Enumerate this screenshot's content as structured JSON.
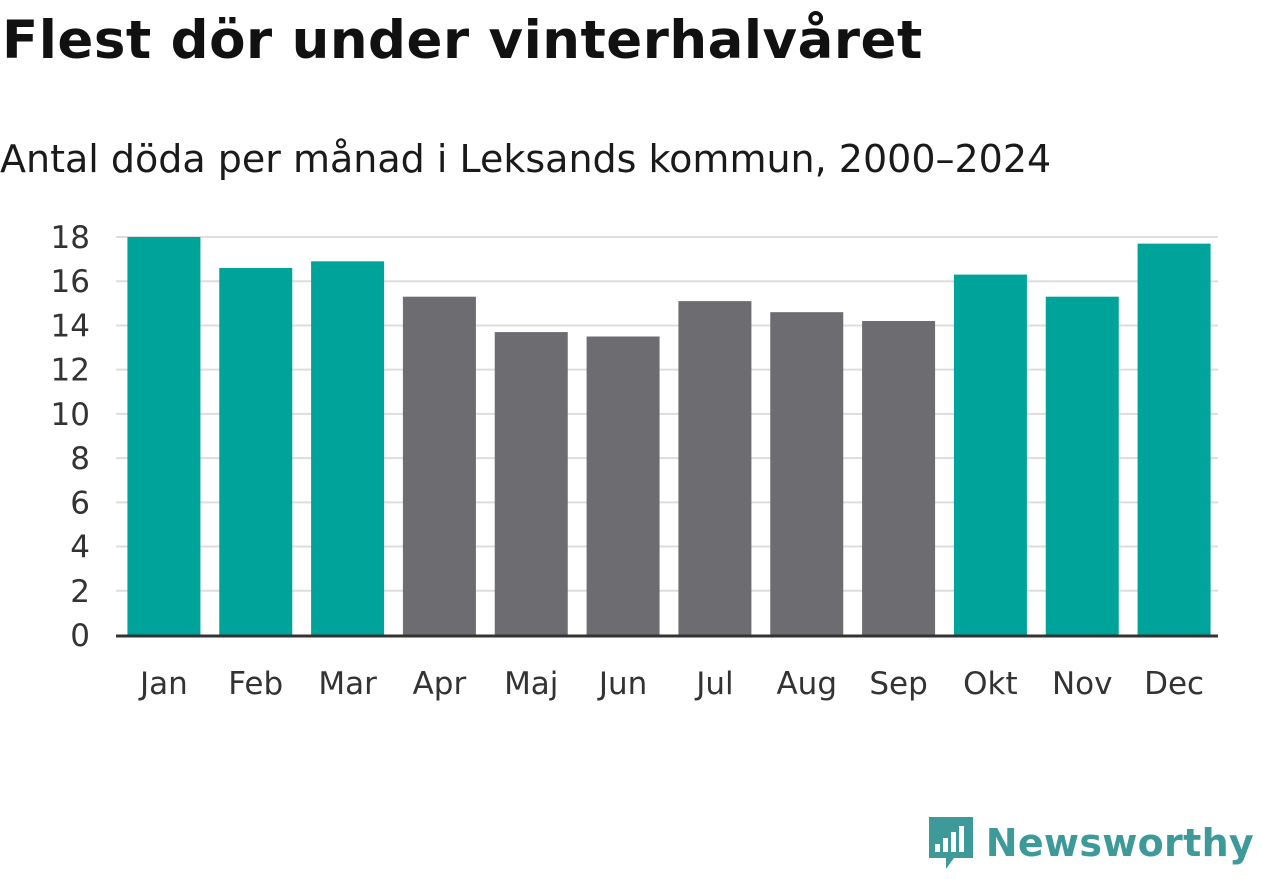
{
  "title": "Flest dör under vinterhalvåret",
  "subtitle": "Antal döda per månad i Leksands kommun, 2000–2024",
  "brand": {
    "name": "Newsworthy",
    "icon": "newsworthy-logo-icon",
    "color": "#3d9a99"
  },
  "colors": {
    "highlight": "#00a39a",
    "muted": "#6d6c71",
    "grid": "#dddddd",
    "axis": "#333333"
  },
  "chart_data": {
    "type": "bar",
    "title": "Flest dör under vinterhalvåret",
    "subtitle": "Antal döda per månad i Leksands kommun, 2000–2024",
    "xlabel": "",
    "ylabel": "",
    "categories": [
      "Jan",
      "Feb",
      "Mar",
      "Apr",
      "Maj",
      "Jun",
      "Jul",
      "Aug",
      "Sep",
      "Okt",
      "Nov",
      "Dec"
    ],
    "values": [
      18.0,
      16.6,
      16.9,
      15.3,
      13.7,
      13.5,
      15.1,
      14.6,
      14.2,
      16.3,
      15.3,
      17.7
    ],
    "highlighted": [
      true,
      true,
      true,
      false,
      false,
      false,
      false,
      false,
      false,
      true,
      true,
      true
    ],
    "ylim": [
      0,
      18
    ],
    "yticks": [
      0,
      2,
      4,
      6,
      8,
      10,
      12,
      14,
      16,
      18
    ],
    "grid": true,
    "legend": "none"
  }
}
